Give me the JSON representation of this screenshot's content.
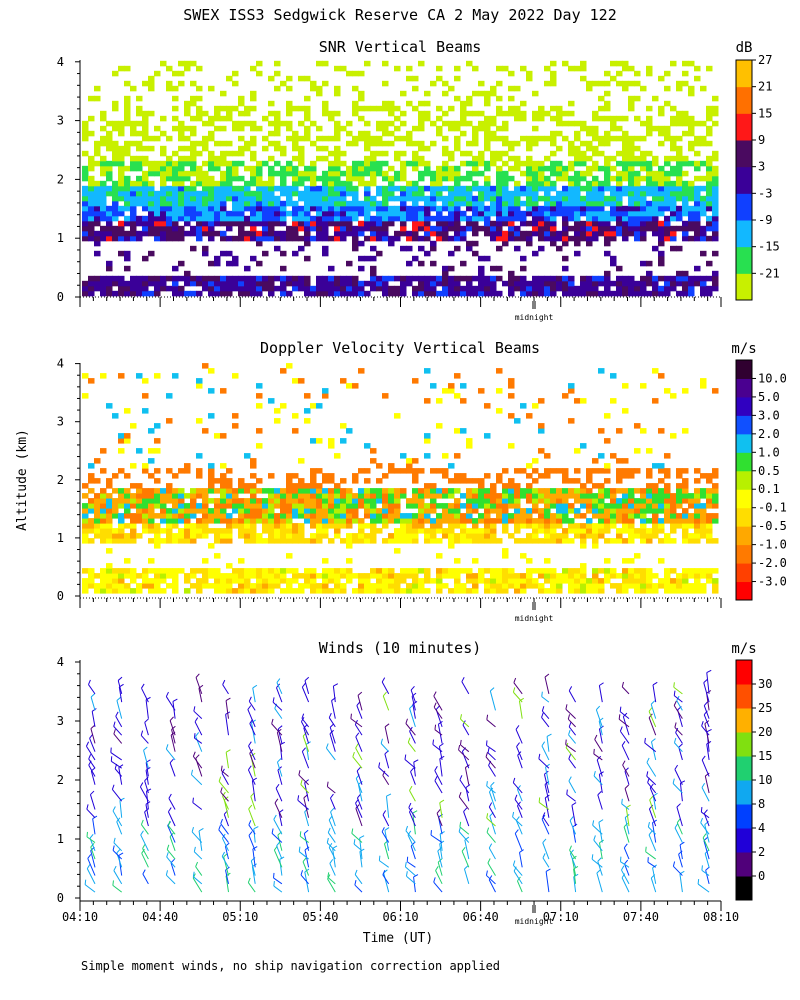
{
  "header": {
    "title": "SWEX ISS3 Sedgwick Reserve CA   2 May 2022 Day 122",
    "ylabel": "Altitude (km)",
    "footnote": "Simple moment winds, no ship navigation correction applied"
  },
  "time_axis": {
    "ticks": [
      "04:10",
      "04:40",
      "05:10",
      "05:40",
      "06:10",
      "06:40",
      "07:10",
      "07:40",
      "08:10"
    ],
    "label": "Time (UT)",
    "midnight_label": "midnight"
  },
  "alt_ticks": [
    "0",
    "1",
    "2",
    "3",
    "4"
  ],
  "panels": [
    {
      "title": "SNR Vertical Beams",
      "unit": "dB",
      "levels": [
        "-21",
        "-15",
        "-9",
        "-3",
        "3",
        "9",
        "15",
        "21",
        "27"
      ],
      "colors": [
        "#c8f000",
        "#28e050",
        "#12b8ff",
        "#1040ff",
        "#3a0098",
        "#4a0a60",
        "#ff1818",
        "#ff7000",
        "#ffc000"
      ]
    },
    {
      "title": "Doppler Velocity Vertical Beams",
      "unit": "m/s",
      "levels": [
        "-3.0",
        "-2.0",
        "-1.0",
        "-0.5",
        "-0.1",
        "0.1",
        "0.5",
        "1.0",
        "2.0",
        "3.0",
        "5.0",
        "10.0"
      ],
      "colors": [
        "#ff0000",
        "#ff4000",
        "#ff7a00",
        "#ffa800",
        "#ffdd00",
        "#ffff00",
        "#b8f000",
        "#30e030",
        "#10c0f0",
        "#1050ff",
        "#3000c0",
        "#4a0090",
        "#300030"
      ]
    },
    {
      "title": "Winds (10 minutes)",
      "unit": "m/s",
      "levels": [
        "0",
        "2",
        "4",
        "8",
        "10",
        "15",
        "20",
        "25",
        "30"
      ],
      "colors": [
        "#000000",
        "#50007a",
        "#2000d8",
        "#0040ff",
        "#10a8f0",
        "#20d070",
        "#80e010",
        "#ffb000",
        "#ff5000",
        "#ff0000"
      ]
    }
  ],
  "chart_data": [
    {
      "type": "heatmap",
      "title": "SNR Vertical Beams",
      "ylabel": "Altitude (km)",
      "xlabel": "Time (UT)",
      "x_range": [
        "04:10",
        "08:10"
      ],
      "ylim": [
        0,
        4
      ],
      "colorbar_unit": "dB",
      "colorbar_levels": [
        -21,
        -15,
        -9,
        -3,
        3,
        9,
        15,
        21,
        27
      ],
      "layers": [
        {
          "altitude_km": [
            0.0,
            0.3
          ],
          "value_db_approx": 9
        },
        {
          "altitude_km": [
            0.3,
            1.2
          ],
          "value_db_approx": 9
        },
        {
          "altitude_km": [
            1.2,
            1.8
          ],
          "value_db_approx": -6
        },
        {
          "altitude_km": [
            1.8,
            4.0
          ],
          "value_db_approx": -18
        }
      ]
    },
    {
      "type": "heatmap",
      "title": "Doppler Velocity Vertical Beams",
      "ylabel": "Altitude (km)",
      "xlabel": "Time (UT)",
      "x_range": [
        "04:10",
        "08:10"
      ],
      "ylim": [
        0,
        4
      ],
      "colorbar_unit": "m/s",
      "colorbar_levels": [
        -3.0,
        -2.0,
        -1.0,
        -0.5,
        -0.1,
        0.1,
        0.5,
        1.0,
        2.0,
        3.0,
        5.0,
        10.0
      ],
      "layers": [
        {
          "altitude_km": [
            0.0,
            0.4
          ],
          "value_ms_approx": -0.1
        },
        {
          "altitude_km": [
            0.9,
            1.8
          ],
          "value_ms_approx": -0.5
        },
        {
          "altitude_km": [
            1.2,
            1.8
          ],
          "value_ms_approx": 0.5
        }
      ]
    },
    {
      "type": "scatter",
      "title": "Winds (10 minutes)",
      "ylabel": "Altitude (km)",
      "xlabel": "Time (UT)",
      "x_range": [
        "04:10",
        "08:10"
      ],
      "ylim": [
        0,
        4
      ],
      "interval_minutes": 10,
      "colorbar_unit": "m/s",
      "colorbar_levels": [
        0,
        2,
        4,
        8,
        10,
        15,
        20,
        25,
        30
      ]
    }
  ]
}
